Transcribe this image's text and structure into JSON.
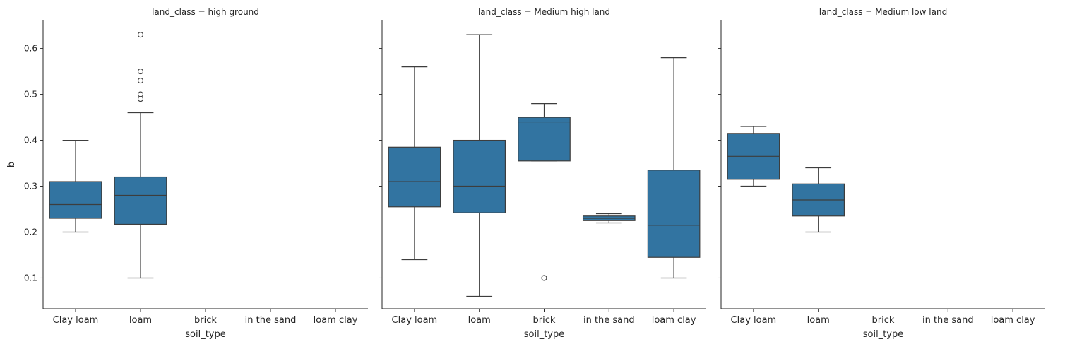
{
  "chart_data": {
    "type": "box",
    "ylabel": "b",
    "xlabel": "soil_type",
    "categories": [
      "Clay loam",
      "loam",
      "brick",
      "in the sand",
      "loam clay"
    ],
    "ylim": [
      0.033,
      0.661
    ],
    "yticks": [
      0.1,
      0.2,
      0.3,
      0.4,
      0.5,
      0.6
    ],
    "ytick_labels": [
      "0.1",
      "0.2",
      "0.3",
      "0.4",
      "0.5",
      "0.6"
    ],
    "box_color": "#3274a1",
    "line_color": "#3d3d3d",
    "facets": [
      {
        "title": "land_class = high ground",
        "boxes": [
          {
            "category": "Clay loam",
            "whisker_low": 0.2,
            "q1": 0.23,
            "median": 0.26,
            "q3": 0.31,
            "whisker_high": 0.4,
            "outliers": []
          },
          {
            "category": "loam",
            "whisker_low": 0.1,
            "q1": 0.217,
            "median": 0.28,
            "q3": 0.32,
            "whisker_high": 0.46,
            "outliers": [
              0.49,
              0.5,
              0.53,
              0.55,
              0.63
            ]
          }
        ]
      },
      {
        "title": "land_class = Medium high land",
        "boxes": [
          {
            "category": "Clay loam",
            "whisker_low": 0.14,
            "q1": 0.255,
            "median": 0.31,
            "q3": 0.385,
            "whisker_high": 0.56,
            "outliers": []
          },
          {
            "category": "loam",
            "whisker_low": 0.06,
            "q1": 0.242,
            "median": 0.3,
            "q3": 0.4,
            "whisker_high": 0.63,
            "outliers": []
          },
          {
            "category": "brick",
            "whisker_low": 0.355,
            "q1": 0.355,
            "median": 0.44,
            "q3": 0.45,
            "whisker_high": 0.48,
            "outliers": [
              0.1
            ]
          },
          {
            "category": "in the sand",
            "whisker_low": 0.22,
            "q1": 0.225,
            "median": 0.23,
            "q3": 0.235,
            "whisker_high": 0.24,
            "outliers": []
          },
          {
            "category": "loam clay",
            "whisker_low": 0.1,
            "q1": 0.145,
            "median": 0.215,
            "q3": 0.335,
            "whisker_high": 0.58,
            "outliers": []
          }
        ]
      },
      {
        "title": "land_class = Medium low land",
        "boxes": [
          {
            "category": "Clay loam",
            "whisker_low": 0.3,
            "q1": 0.315,
            "median": 0.365,
            "q3": 0.415,
            "whisker_high": 0.43,
            "outliers": []
          },
          {
            "category": "loam",
            "whisker_low": 0.2,
            "q1": 0.235,
            "median": 0.27,
            "q3": 0.305,
            "whisker_high": 0.34,
            "outliers": []
          }
        ]
      }
    ]
  }
}
